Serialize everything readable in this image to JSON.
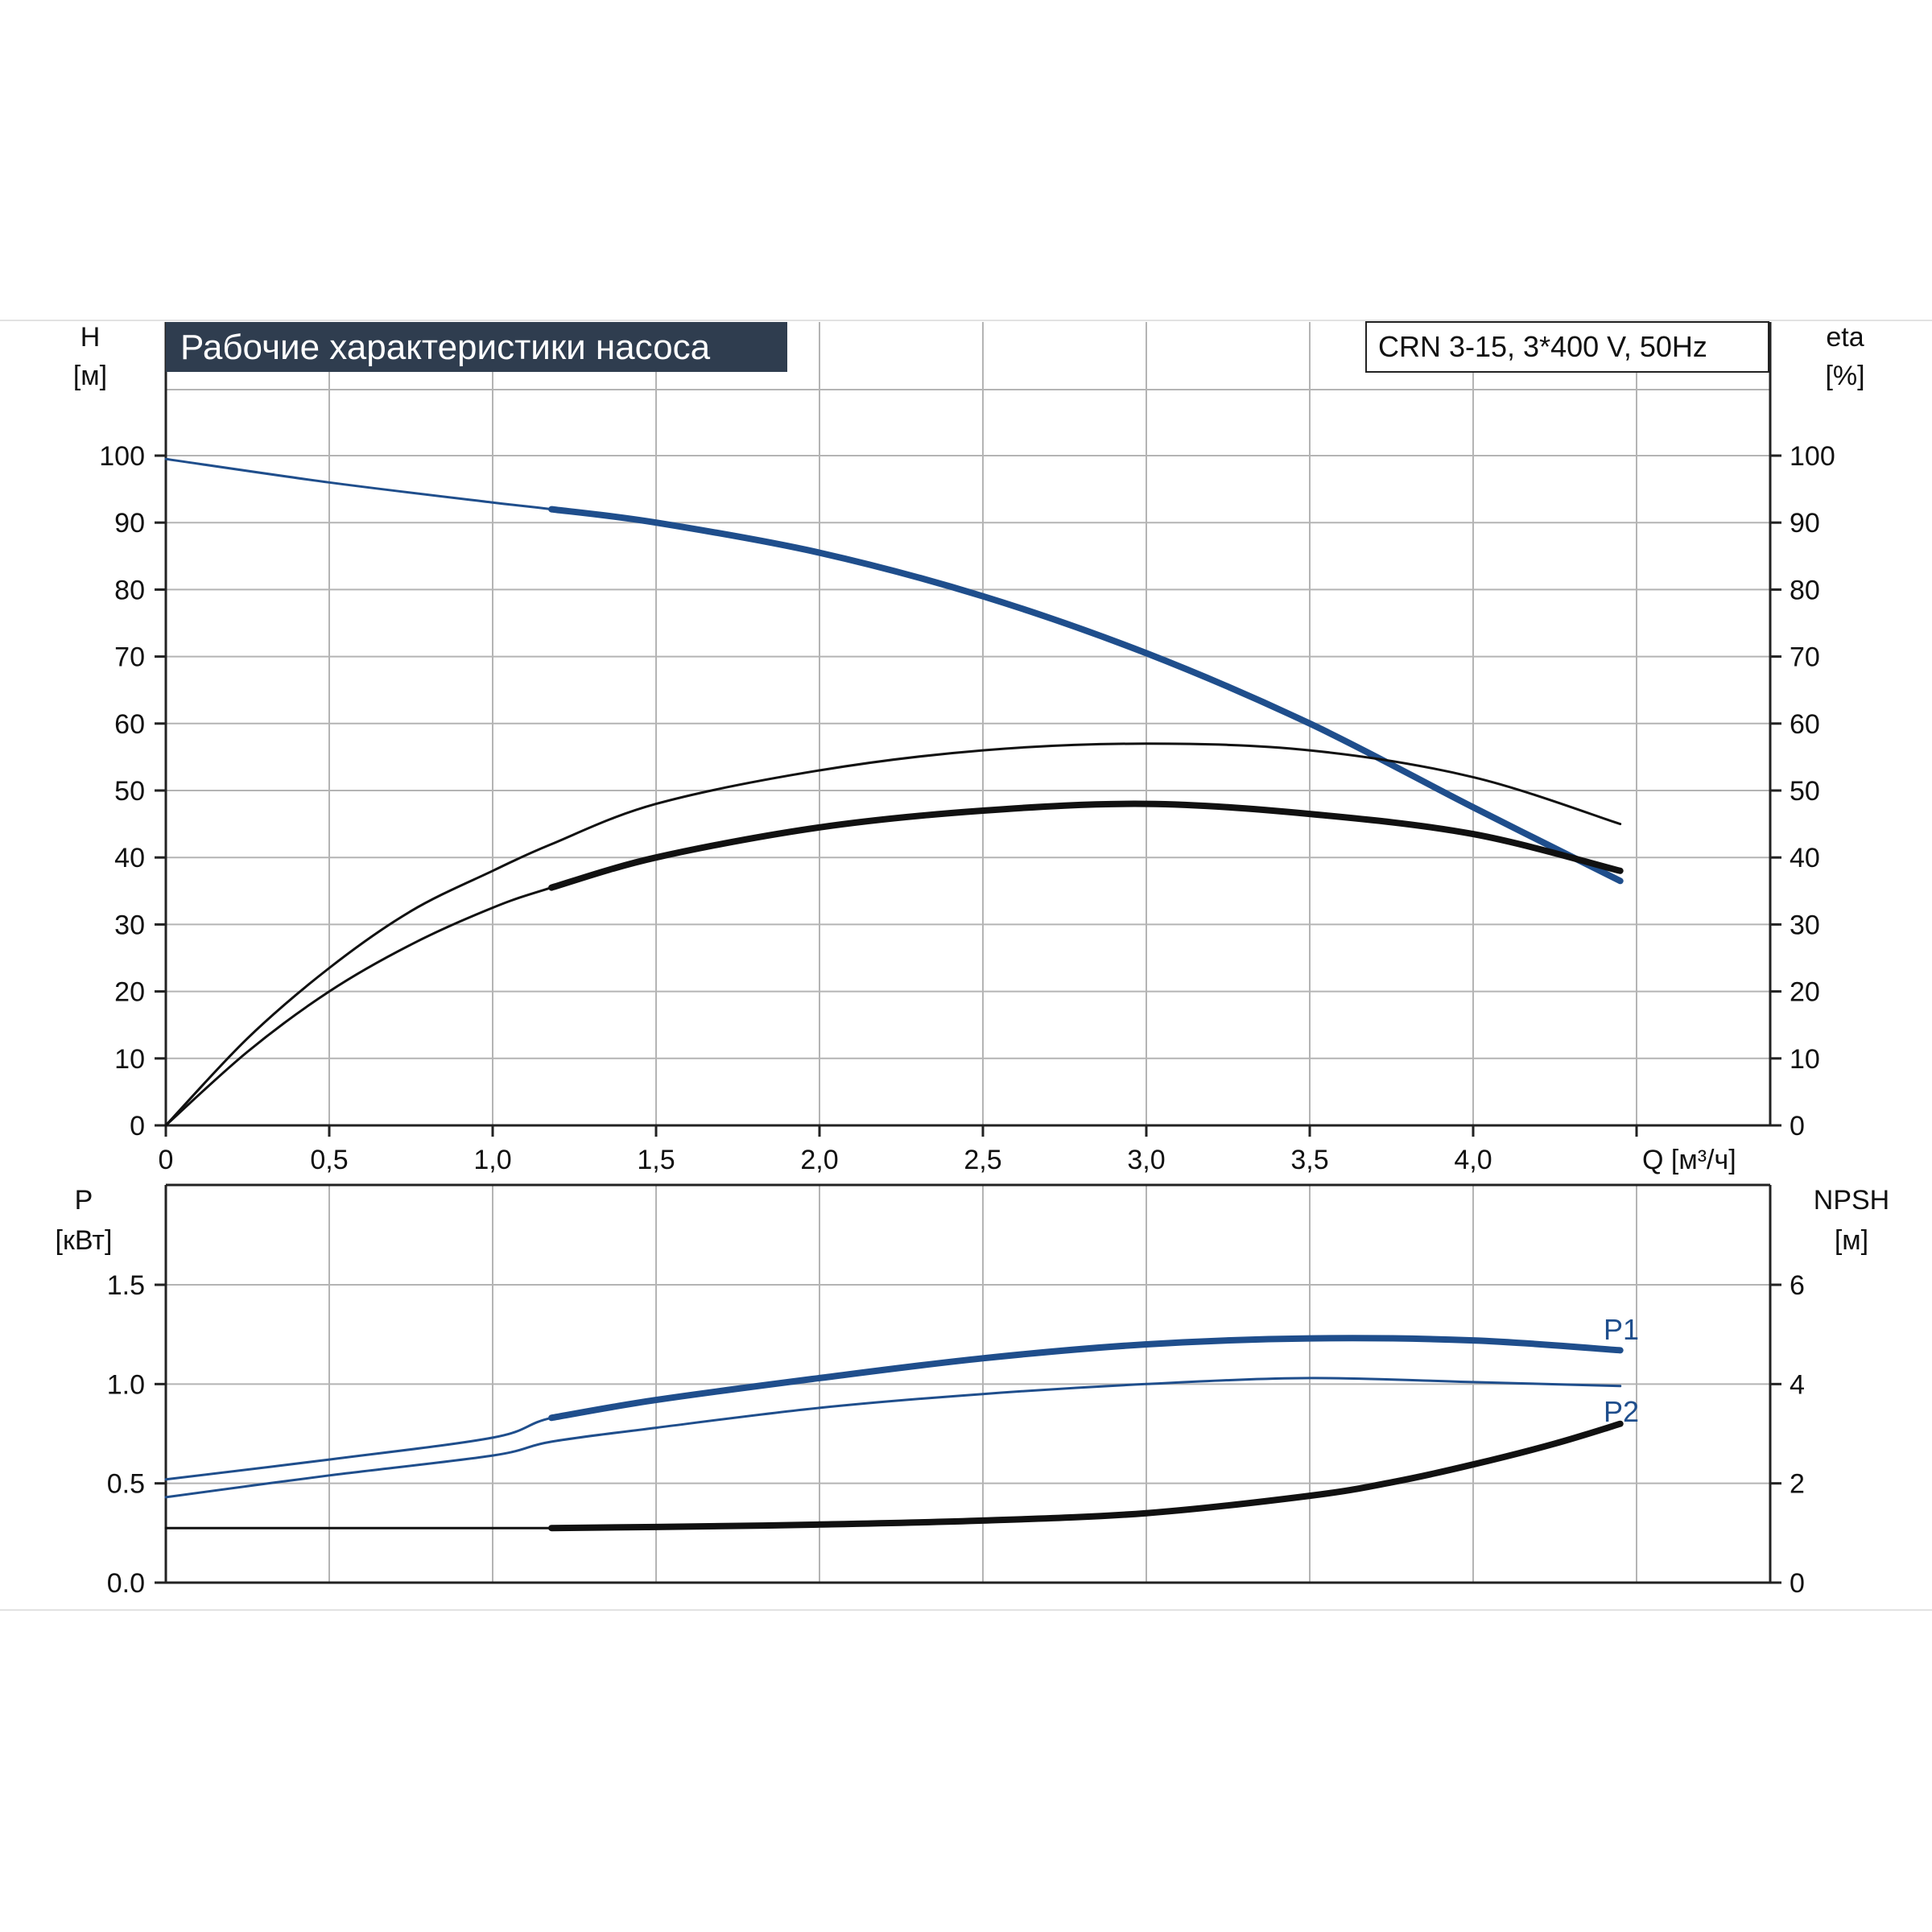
{
  "title": "Рабочие характеристики насоса",
  "model": "CRN 3-15, 3*400 V, 50Hz",
  "colors": {
    "blue": "#1f4e8c",
    "black": "#111111",
    "grid": "#b4b4b4",
    "title_bg": "#2f3d4f"
  },
  "chart_data": [
    {
      "id": "head-efficiency",
      "type": "line",
      "xlabel": "Q [м³/ч]",
      "ylabel_left": [
        "H",
        "[м]"
      ],
      "ylabel_right": [
        "eta",
        "[%]"
      ],
      "xlim": [
        0,
        4.5
      ],
      "ylim": [
        0,
        100
      ],
      "x_ticks": [
        "0",
        "0,5",
        "1,0",
        "1,5",
        "2,0",
        "2,5",
        "3,0",
        "3,5",
        "4,0"
      ],
      "y_ticks_left": [
        "0",
        "10",
        "20",
        "30",
        "40",
        "50",
        "60",
        "70",
        "80",
        "90",
        "100"
      ],
      "y_ticks_right": [
        "0",
        "10",
        "20",
        "30",
        "40",
        "50",
        "60",
        "70",
        "80",
        "90",
        "100"
      ],
      "grid": true,
      "series": [
        {
          "color": "blue",
          "axis": "left",
          "x": [
            0,
            0.5,
            1.0,
            1.18,
            1.5,
            2.0,
            2.5,
            3.0,
            3.5,
            4.0,
            4.45
          ],
          "y": [
            99.5,
            96,
            93,
            92,
            90,
            85.5,
            79,
            70.5,
            60,
            47.5,
            36.5
          ],
          "bold_from": 1.18
        },
        {
          "color": "black",
          "axis": "right",
          "x": [
            0,
            0.25,
            0.5,
            0.75,
            1.0,
            1.18,
            1.5,
            2.0,
            2.5,
            3.0,
            3.5,
            4.0,
            4.45
          ],
          "y": [
            0,
            13,
            23.5,
            32,
            38,
            42,
            48,
            53,
            56,
            57,
            56,
            52,
            45
          ]
        },
        {
          "color": "black",
          "axis": "right",
          "x": [
            0,
            0.25,
            0.5,
            0.75,
            1.0,
            1.18,
            1.5,
            2.0,
            2.5,
            3.0,
            3.5,
            4.0,
            4.45
          ],
          "y": [
            0,
            11,
            20,
            27,
            32.5,
            35.5,
            40,
            44.5,
            47,
            48,
            46.5,
            43.5,
            38
          ],
          "bold_from": 1.18
        }
      ]
    },
    {
      "id": "power-npsh",
      "type": "line",
      "xlim": [
        0,
        4.5
      ],
      "ylabel_left": [
        "P",
        "[кВт]"
      ],
      "ylabel_right": [
        "NPSH",
        "[м]"
      ],
      "ylim_left": [
        0,
        2.0
      ],
      "ylim_right": [
        0,
        8
      ],
      "y_ticks_left": [
        "0.0",
        "0.5",
        "1.0",
        "1.5"
      ],
      "y_ticks_right": [
        "0",
        "2",
        "4",
        "6"
      ],
      "grid": true,
      "series": [
        {
          "name": "P1",
          "color": "blue",
          "axis": "left",
          "x": [
            0,
            0.5,
            1.0,
            1.18,
            1.5,
            2.0,
            2.5,
            3.0,
            3.5,
            4.0,
            4.45
          ],
          "y": [
            0.52,
            0.62,
            0.73,
            0.83,
            0.92,
            1.03,
            1.13,
            1.2,
            1.23,
            1.22,
            1.17
          ],
          "bold_from": 1.18
        },
        {
          "name": "P2",
          "color": "blue",
          "axis": "left",
          "x": [
            0,
            0.5,
            1.0,
            1.18,
            1.5,
            2.0,
            2.5,
            3.0,
            3.5,
            4.0,
            4.45
          ],
          "y": [
            0.43,
            0.54,
            0.64,
            0.71,
            0.78,
            0.88,
            0.95,
            1.0,
            1.03,
            1.01,
            0.99
          ]
        },
        {
          "color": "black",
          "axis": "right",
          "x": [
            0,
            0.5,
            1.0,
            1.18,
            1.5,
            2.0,
            2.5,
            3.0,
            3.5,
            3.75,
            4.0,
            4.25,
            4.45
          ],
          "y": [
            1.1,
            1.1,
            1.1,
            1.1,
            1.12,
            1.17,
            1.25,
            1.4,
            1.75,
            2.02,
            2.38,
            2.8,
            3.2
          ],
          "bold_from": 1.18
        }
      ]
    }
  ]
}
